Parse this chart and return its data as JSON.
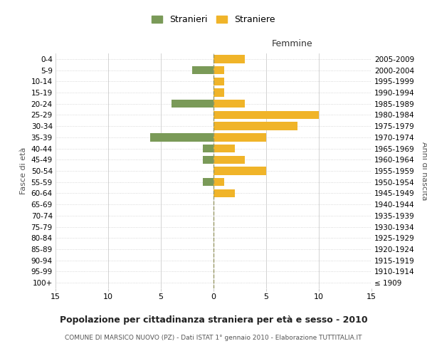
{
  "age_groups": [
    "100+",
    "95-99",
    "90-94",
    "85-89",
    "80-84",
    "75-79",
    "70-74",
    "65-69",
    "60-64",
    "55-59",
    "50-54",
    "45-49",
    "40-44",
    "35-39",
    "30-34",
    "25-29",
    "20-24",
    "15-19",
    "10-14",
    "5-9",
    "0-4"
  ],
  "birth_years": [
    "≤ 1909",
    "1910-1914",
    "1915-1919",
    "1920-1924",
    "1925-1929",
    "1930-1934",
    "1935-1939",
    "1940-1944",
    "1945-1949",
    "1950-1954",
    "1955-1959",
    "1960-1964",
    "1965-1969",
    "1970-1974",
    "1975-1979",
    "1980-1984",
    "1985-1989",
    "1990-1994",
    "1995-1999",
    "2000-2004",
    "2005-2009"
  ],
  "males": [
    0,
    0,
    0,
    0,
    0,
    0,
    0,
    0,
    0,
    1,
    0,
    1,
    1,
    6,
    0,
    0,
    4,
    0,
    0,
    2,
    0
  ],
  "females": [
    0,
    0,
    0,
    0,
    0,
    0,
    0,
    0,
    2,
    1,
    5,
    3,
    2,
    5,
    8,
    10,
    3,
    1,
    1,
    1,
    3
  ],
  "male_color": "#7a9a58",
  "female_color": "#f0b429",
  "title": "Popolazione per cittadinanza straniera per età e sesso - 2010",
  "subtitle": "COMUNE DI MARSICO NUOVO (PZ) - Dati ISTAT 1° gennaio 2010 - Elaborazione TUTTITALIA.IT",
  "xlabel_right": "Femmine",
  "ylabel_left": "Fasce di età",
  "ylabel_right": "Anni di nascita",
  "legend_male": "Stranieri",
  "legend_female": "Straniere",
  "xlim": 15,
  "bg_color": "#ffffff",
  "grid_color": "#cccccc",
  "vline_color": "#999966"
}
